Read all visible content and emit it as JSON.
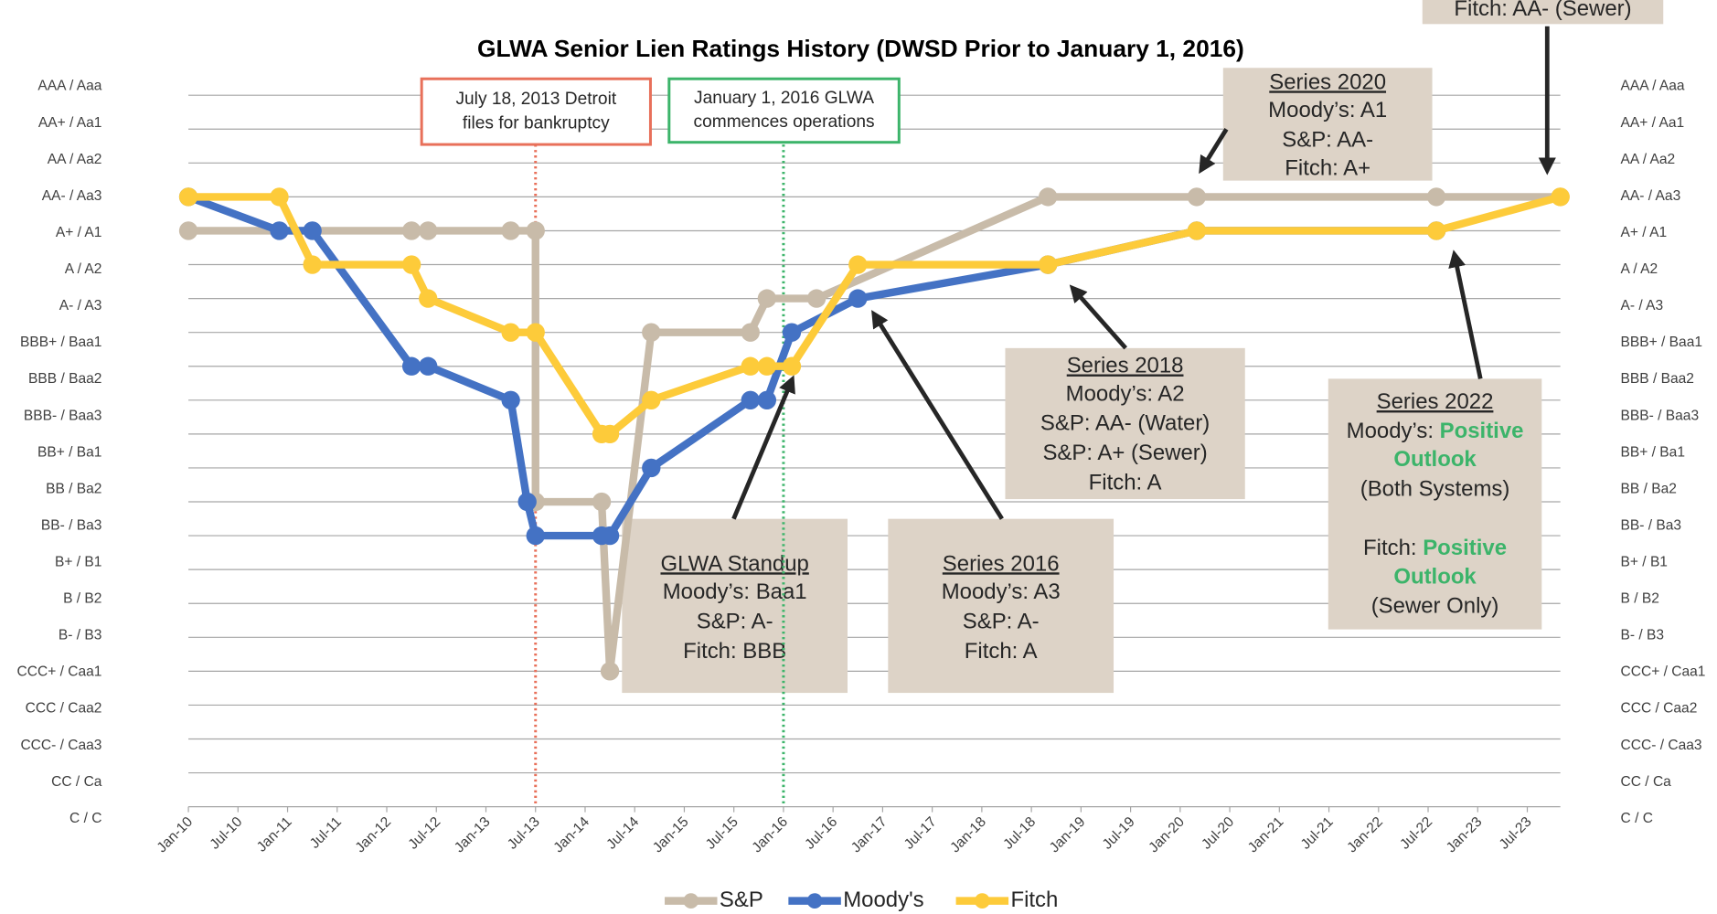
{
  "chart_data": {
    "type": "line",
    "title": "GLWA Senior Lien Ratings History (DWSD Prior to January 1, 2016)",
    "xlim": [
      "2010-01",
      "2023-11"
    ],
    "xticks": [
      {
        "value": "2010-01",
        "label": "Jan-10"
      },
      {
        "value": "2010-07",
        "label": "Jul-10"
      },
      {
        "value": "2011-01",
        "label": "Jan-11"
      },
      {
        "value": "2011-07",
        "label": "Jul-11"
      },
      {
        "value": "2012-01",
        "label": "Jan-12"
      },
      {
        "value": "2012-07",
        "label": "Jul-12"
      },
      {
        "value": "2013-01",
        "label": "Jan-13"
      },
      {
        "value": "2013-07",
        "label": "Jul-13"
      },
      {
        "value": "2014-01",
        "label": "Jan-14"
      },
      {
        "value": "2014-07",
        "label": "Jul-14"
      },
      {
        "value": "2015-01",
        "label": "Jan-15"
      },
      {
        "value": "2015-07",
        "label": "Jul-15"
      },
      {
        "value": "2016-01",
        "label": "Jan-16"
      },
      {
        "value": "2016-07",
        "label": "Jul-16"
      },
      {
        "value": "2017-01",
        "label": "Jan-17"
      },
      {
        "value": "2017-07",
        "label": "Jul-17"
      },
      {
        "value": "2018-01",
        "label": "Jan-18"
      },
      {
        "value": "2018-07",
        "label": "Jul-18"
      },
      {
        "value": "2019-01",
        "label": "Jan-19"
      },
      {
        "value": "2019-07",
        "label": "Jul-19"
      },
      {
        "value": "2020-01",
        "label": "Jan-20"
      },
      {
        "value": "2020-07",
        "label": "Jul-20"
      },
      {
        "value": "2021-01",
        "label": "Jan-21"
      },
      {
        "value": "2021-07",
        "label": "Jul-21"
      },
      {
        "value": "2022-01",
        "label": "Jan-22"
      },
      {
        "value": "2022-07",
        "label": "Jul-22"
      },
      {
        "value": "2023-01",
        "label": "Jan-23"
      },
      {
        "value": "2023-07",
        "label": "Jul-23"
      }
    ],
    "ylim": [
      0,
      21
    ],
    "yticks": [
      {
        "value": 21,
        "label": "AAA / Aaa"
      },
      {
        "value": 20,
        "label": "AA+ / Aa1"
      },
      {
        "value": 19,
        "label": "AA / Aa2"
      },
      {
        "value": 18,
        "label": "AA- / Aa3"
      },
      {
        "value": 17,
        "label": "A+ / A1"
      },
      {
        "value": 16,
        "label": "A / A2"
      },
      {
        "value": 15,
        "label": "A- / A3"
      },
      {
        "value": 14,
        "label": "BBB+ / Baa1"
      },
      {
        "value": 13,
        "label": "BBB / Baa2"
      },
      {
        "value": 12,
        "label": "BBB- / Baa3"
      },
      {
        "value": 11,
        "label": "BB+ / Ba1"
      },
      {
        "value": 10,
        "label": "BB / Ba2"
      },
      {
        "value": 9,
        "label": "BB- / Ba3"
      },
      {
        "value": 8,
        "label": "B+ / B1"
      },
      {
        "value": 7,
        "label": "B / B2"
      },
      {
        "value": 6,
        "label": "B- / B3"
      },
      {
        "value": 5,
        "label": "CCC+ / Caa1"
      },
      {
        "value": 4,
        "label": "CCC / Caa2"
      },
      {
        "value": 3,
        "label": "CCC- / Caa3"
      },
      {
        "value": 2,
        "label": "CC / Ca"
      },
      {
        "value": 1,
        "label": "C / C"
      }
    ],
    "grid": true,
    "series": [
      {
        "name": "S&P",
        "color": "#c8bba9",
        "x": [
          "2010-01",
          "2012-04",
          "2012-06",
          "2013-04",
          "2013-07",
          "2013-07",
          "2014-03",
          "2014-04",
          "2014-09",
          "2015-09",
          "2015-11",
          "2016-05",
          "2018-09",
          "2020-03",
          "2022-08",
          "2023-11"
        ],
        "values": [
          17,
          17,
          17,
          17,
          17,
          9,
          9,
          4,
          14,
          14,
          15,
          15,
          18,
          18,
          18,
          18
        ]
      },
      {
        "name": "Moody's",
        "color": "#4472c4",
        "x": [
          "2010-01",
          "2010-12",
          "2011-04",
          "2012-04",
          "2012-06",
          "2013-04",
          "2013-06",
          "2013-07",
          "2014-03",
          "2014-04",
          "2014-09",
          "2015-09",
          "2015-11",
          "2016-02",
          "2016-10",
          "2018-09",
          "2020-03",
          "2022-08"
        ],
        "values": [
          18,
          17,
          17,
          13,
          13,
          12,
          9,
          8,
          8,
          8,
          10,
          12,
          12,
          14,
          15,
          16,
          17,
          17
        ]
      },
      {
        "name": "Fitch",
        "color": "#fdcb3a",
        "x": [
          "2010-01",
          "2010-12",
          "2011-04",
          "2012-04",
          "2012-06",
          "2013-04",
          "2013-07",
          "2014-03",
          "2014-04",
          "2014-09",
          "2015-09",
          "2015-11",
          "2016-02",
          "2016-10",
          "2018-09",
          "2020-03",
          "2022-08",
          "2023-11"
        ],
        "values": [
          18,
          18,
          16,
          16,
          15,
          14,
          14,
          11,
          11,
          12,
          13,
          13,
          13,
          16,
          16,
          17,
          17,
          18
        ]
      }
    ],
    "reference_lines": [
      {
        "x": "2013-07",
        "color": "#e8705a"
      },
      {
        "x": "2016-01",
        "color": "#3cb46a"
      }
    ],
    "annotations": [
      {
        "border": "#e8705a",
        "lines": [
          {
            "text": "July 18, 2013 Detroit"
          },
          {
            "text": "files for bankruptcy"
          }
        ]
      },
      {
        "border": "#3cb46a",
        "lines": [
          {
            "text": "January 1, 2016 GLWA"
          },
          {
            "text": "commences operations"
          }
        ]
      },
      {
        "title": "GLWA Standup",
        "lines": [
          {
            "text": "Moody’s: Baa1"
          },
          {
            "text": "S&P: A-"
          },
          {
            "text": "Fitch: BBB"
          }
        ]
      },
      {
        "title": "Series 2016",
        "lines": [
          {
            "text": "Moody’s: A3"
          },
          {
            "text": "S&P: A-"
          },
          {
            "text": "Fitch: A"
          }
        ]
      },
      {
        "title": "Series 2018",
        "lines": [
          {
            "text": "Moody’s: A2"
          },
          {
            "text": "S&P: AA- (Water)"
          },
          {
            "text": "S&P: A+ (Sewer)"
          },
          {
            "text": "Fitch: A"
          }
        ]
      },
      {
        "title": "Series 2020",
        "lines": [
          {
            "text": "Moody’s: A1"
          },
          {
            "text": "S&P: AA-"
          },
          {
            "text": "Fitch: A+"
          }
        ]
      },
      {
        "title": "Series 2022",
        "lines": [
          {
            "text": "Moody’s: ",
            "em": "Positive"
          },
          {
            "em": "Outlook"
          },
          {
            "text": "(Both Systems)"
          },
          {
            "text": "Fitch: ",
            "em": "Positive"
          },
          {
            "em": "Outlook"
          },
          {
            "text": "(Sewer Only)"
          }
        ]
      },
      {
        "lines": [
          {
            "text": "Fitch: AA- (Sewer)"
          }
        ]
      }
    ],
    "highlight_color": "#3cb46a"
  }
}
